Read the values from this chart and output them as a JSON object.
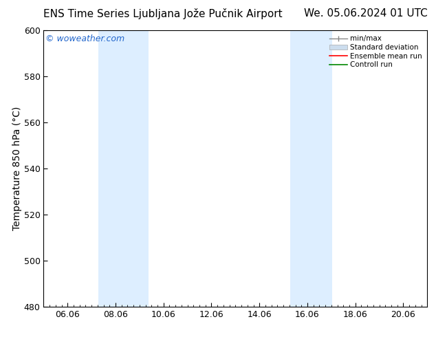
{
  "title_left": "ENS Time Series Ljubljana Jože Pučnik Airport",
  "title_right": "We. 05.06.2024 01 UTC",
  "ylabel": "Temperature 850 hPa (°C)",
  "ylim": [
    480,
    600
  ],
  "yticks": [
    480,
    500,
    520,
    540,
    560,
    580,
    600
  ],
  "xtick_labels": [
    "06.06",
    "08.06",
    "10.06",
    "12.06",
    "14.06",
    "16.06",
    "18.06",
    "20.06"
  ],
  "xtick_positions_hours": [
    24,
    72,
    120,
    168,
    216,
    264,
    312,
    360
  ],
  "xlim": [
    0,
    384
  ],
  "shaded_bands": [
    {
      "start_hours": 55,
      "end_hours": 105
    },
    {
      "start_hours": 247,
      "end_hours": 289
    }
  ],
  "shaded_color": "#ddeeff",
  "watermark": "© woweather.com",
  "watermark_color": "#2266cc",
  "legend_entries": [
    {
      "label": "min/max",
      "color": "#aaaaaa",
      "style": "line_caps"
    },
    {
      "label": "Standard deviation",
      "color": "#ccddee",
      "style": "fill"
    },
    {
      "label": "Ensemble mean run",
      "color": "#ff0000",
      "style": "line"
    },
    {
      "label": "Controll run",
      "color": "#008800",
      "style": "line"
    }
  ],
  "bg_color": "#ffffff",
  "title_fontsize": 11,
  "label_fontsize": 10,
  "tick_fontsize": 9,
  "minor_xtick_hours": 6,
  "total_hours": 384
}
